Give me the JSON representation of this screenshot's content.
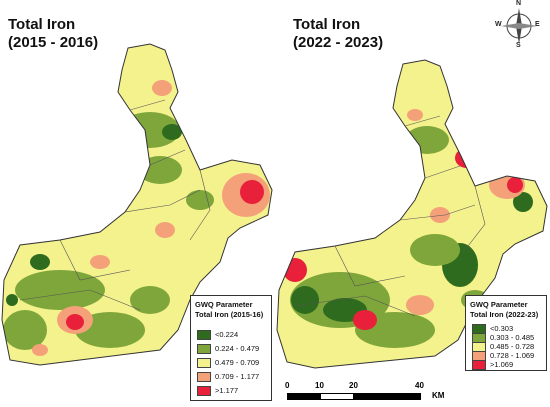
{
  "left_map": {
    "title_line1": "Total Iron",
    "title_line2": "(2015 - 2016)",
    "legend": {
      "heading": "GWQ Parameter",
      "subheading": "Total Iron (2015-16)",
      "items": [
        {
          "label": "<0.224",
          "color": "#2e6b1f"
        },
        {
          "label": "0.224 - 0.479",
          "color": "#7fa63a"
        },
        {
          "label": "0.479 - 0.709",
          "color": "#f4f28c"
        },
        {
          "label": "0.709 - 1.177",
          "color": "#f4a17a"
        },
        {
          "label": ">1.177",
          "color": "#e8203a"
        }
      ]
    }
  },
  "right_map": {
    "title_line1": "Total Iron",
    "title_line2": "(2022 - 2023)",
    "legend": {
      "heading": "GWQ Parameter",
      "subheading": "Total Iron (2022-23)",
      "items": [
        {
          "label": "<0.303",
          "color": "#2e6b1f"
        },
        {
          "label": "0.303 - 0.485",
          "color": "#7fa63a"
        },
        {
          "label": "0.485 - 0.728",
          "color": "#f4f28c"
        },
        {
          "label": "0.728 - 1.069",
          "color": "#f4a17a"
        },
        {
          "label": ">1.069",
          "color": "#e8203a"
        }
      ]
    },
    "scalebar": {
      "ticks": [
        "0",
        "10",
        "20",
        "40"
      ],
      "unit": "KM"
    },
    "compass": {
      "n": "N",
      "s": "S",
      "e": "E",
      "w": "W"
    }
  }
}
